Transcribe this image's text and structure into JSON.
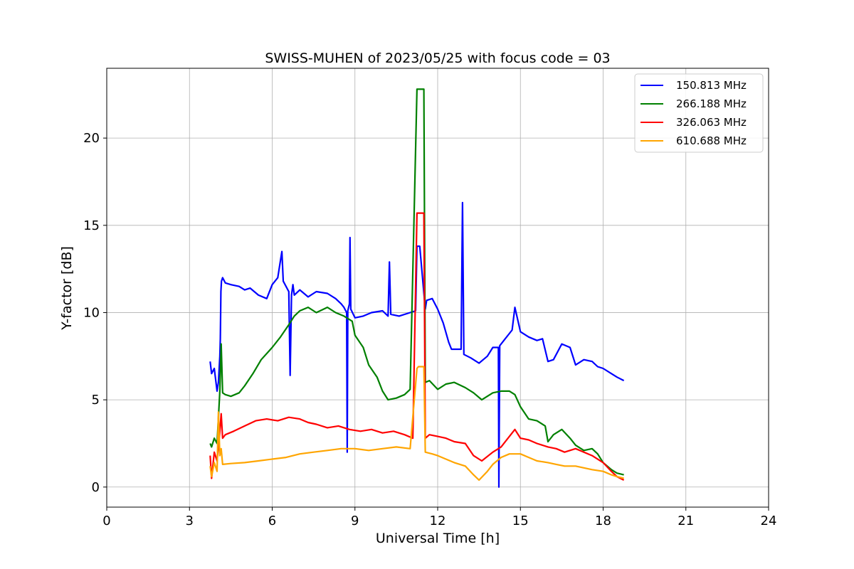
{
  "chart_data": {
    "type": "line",
    "title": "SWISS-MUHEN of 2023/05/25 with focus code = 03",
    "xlabel": "Universal Time [h]",
    "ylabel": "Y-factor [dB]",
    "xlim": [
      0,
      24
    ],
    "ylim": [
      -1.15,
      24.0
    ],
    "xticks": [
      0,
      3,
      6,
      9,
      12,
      15,
      18,
      21,
      24
    ],
    "yticks": [
      0,
      5,
      10,
      15,
      20
    ],
    "grid": true,
    "legend_position": "top-right",
    "series": [
      {
        "name": "150.813 MHz",
        "color": "#0000ff",
        "x": [
          3.75,
          3.8,
          3.9,
          4.0,
          4.05,
          4.1,
          4.12,
          4.14,
          4.16,
          4.2,
          4.3,
          4.5,
          4.8,
          5.0,
          5.2,
          5.5,
          5.8,
          6.0,
          6.2,
          6.35,
          6.4,
          6.6,
          6.65,
          6.7,
          6.75,
          6.8,
          7.0,
          7.3,
          7.6,
          8.0,
          8.3,
          8.5,
          8.6,
          8.7,
          8.72,
          8.74,
          8.8,
          8.82,
          8.85,
          9.0,
          9.3,
          9.6,
          10.0,
          10.2,
          10.25,
          10.3,
          10.6,
          11.0,
          11.2,
          11.25,
          11.3,
          11.35,
          11.55,
          11.6,
          11.8,
          12.0,
          12.2,
          12.4,
          12.5,
          12.7,
          12.85,
          12.9,
          12.95,
          13.2,
          13.5,
          13.8,
          14.0,
          14.2,
          14.22,
          14.25,
          14.4,
          14.7,
          14.8,
          15.0,
          15.3,
          15.6,
          15.8,
          16.0,
          16.2,
          16.5,
          16.8,
          17.0,
          17.3,
          17.6,
          17.8,
          18.0,
          18.3,
          18.5,
          18.75
        ],
        "y": [
          7.2,
          6.5,
          6.8,
          5.5,
          6.0,
          7.5,
          8.5,
          11.2,
          11.8,
          12.0,
          11.7,
          11.6,
          11.5,
          11.3,
          11.4,
          11.0,
          10.8,
          11.6,
          12.0,
          13.5,
          11.8,
          11.2,
          6.4,
          11.0,
          11.6,
          11.0,
          11.3,
          10.9,
          11.2,
          11.1,
          10.8,
          10.5,
          10.3,
          10.0,
          2.0,
          10.1,
          10.5,
          14.3,
          10.2,
          9.7,
          9.8,
          10.0,
          10.1,
          9.8,
          12.9,
          9.9,
          9.8,
          10.0,
          10.1,
          13.8,
          13.8,
          13.8,
          10.2,
          10.7,
          10.8,
          10.2,
          9.4,
          8.3,
          7.9,
          7.9,
          7.9,
          16.3,
          7.6,
          7.4,
          7.1,
          7.5,
          8.0,
          8.0,
          0.0,
          8.1,
          8.4,
          9.0,
          10.3,
          8.9,
          8.6,
          8.4,
          8.5,
          7.2,
          7.3,
          8.2,
          8.0,
          7.0,
          7.3,
          7.2,
          6.9,
          6.8,
          6.5,
          6.3,
          6.1
        ]
      },
      {
        "name": "266.188 MHz",
        "color": "#008000",
        "x": [
          3.75,
          3.8,
          3.9,
          4.0,
          4.1,
          4.15,
          4.2,
          4.3,
          4.5,
          4.8,
          5.0,
          5.3,
          5.6,
          6.0,
          6.3,
          6.6,
          6.8,
          7.0,
          7.3,
          7.6,
          8.0,
          8.3,
          8.6,
          8.9,
          9.0,
          9.3,
          9.5,
          9.8,
          10.0,
          10.2,
          10.5,
          10.8,
          11.0,
          11.25,
          11.3,
          11.5,
          11.55,
          11.7,
          12.0,
          12.3,
          12.6,
          13.0,
          13.3,
          13.6,
          14.0,
          14.3,
          14.6,
          14.8,
          15.0,
          15.3,
          15.6,
          15.9,
          16.0,
          16.2,
          16.5,
          16.8,
          17.0,
          17.3,
          17.6,
          17.8,
          18.0,
          18.3,
          18.5,
          18.75
        ],
        "y": [
          2.5,
          2.3,
          2.8,
          2.5,
          5.5,
          8.2,
          5.4,
          5.3,
          5.2,
          5.4,
          5.8,
          6.5,
          7.3,
          8.0,
          8.6,
          9.3,
          9.8,
          10.1,
          10.3,
          10.0,
          10.3,
          10.0,
          9.8,
          9.5,
          8.7,
          8.0,
          7.0,
          6.3,
          5.5,
          5.0,
          5.1,
          5.3,
          5.6,
          22.8,
          22.8,
          22.8,
          6.0,
          6.1,
          5.6,
          5.9,
          6.0,
          5.7,
          5.4,
          5.0,
          5.4,
          5.5,
          5.5,
          5.3,
          4.6,
          3.9,
          3.8,
          3.5,
          2.6,
          3.0,
          3.3,
          2.8,
          2.4,
          2.1,
          2.2,
          1.9,
          1.4,
          1.0,
          0.8,
          0.7
        ]
      },
      {
        "name": "326.063 MHz",
        "color": "#ff0000",
        "x": [
          3.75,
          3.8,
          3.9,
          4.0,
          4.1,
          4.15,
          4.2,
          4.3,
          4.6,
          5.0,
          5.4,
          5.8,
          6.2,
          6.6,
          7.0,
          7.3,
          7.6,
          8.0,
          8.4,
          8.8,
          9.2,
          9.6,
          10.0,
          10.4,
          10.8,
          11.1,
          11.25,
          11.3,
          11.5,
          11.55,
          11.7,
          12.0,
          12.3,
          12.6,
          13.0,
          13.3,
          13.6,
          14.0,
          14.3,
          14.6,
          14.8,
          15.0,
          15.3,
          15.6,
          16.0,
          16.3,
          16.6,
          17.0,
          17.3,
          17.6,
          18.0,
          18.3,
          18.5,
          18.75
        ],
        "y": [
          1.8,
          0.5,
          2.0,
          1.5,
          3.2,
          4.2,
          2.8,
          3.0,
          3.2,
          3.5,
          3.8,
          3.9,
          3.8,
          4.0,
          3.9,
          3.7,
          3.6,
          3.4,
          3.5,
          3.3,
          3.2,
          3.3,
          3.1,
          3.2,
          3.0,
          2.8,
          15.7,
          15.7,
          15.7,
          2.8,
          3.0,
          2.9,
          2.8,
          2.6,
          2.5,
          1.8,
          1.5,
          2.0,
          2.3,
          2.9,
          3.3,
          2.8,
          2.7,
          2.5,
          2.3,
          2.2,
          2.0,
          2.2,
          2.0,
          1.8,
          1.4,
          0.9,
          0.6,
          0.4
        ]
      },
      {
        "name": "610.688 MHz",
        "color": "#ffa500",
        "x": [
          3.75,
          3.8,
          3.9,
          4.0,
          4.05,
          4.1,
          4.15,
          4.2,
          4.5,
          5.0,
          5.5,
          6.0,
          6.5,
          7.0,
          7.5,
          8.0,
          8.5,
          9.0,
          9.5,
          10.0,
          10.5,
          11.0,
          11.25,
          11.3,
          11.5,
          11.55,
          11.8,
          12.0,
          12.3,
          12.6,
          13.0,
          13.3,
          13.5,
          13.8,
          14.0,
          14.3,
          14.6,
          15.0,
          15.3,
          15.6,
          16.0,
          16.3,
          16.6,
          17.0,
          17.3,
          17.6,
          18.0,
          18.3,
          18.5,
          18.75
        ],
        "y": [
          1.2,
          0.6,
          1.4,
          0.9,
          4.3,
          1.8,
          2.2,
          1.3,
          1.35,
          1.4,
          1.5,
          1.6,
          1.7,
          1.9,
          2.0,
          2.1,
          2.2,
          2.2,
          2.1,
          2.2,
          2.3,
          2.2,
          6.8,
          6.9,
          6.9,
          2.0,
          1.9,
          1.8,
          1.6,
          1.4,
          1.2,
          0.7,
          0.4,
          0.9,
          1.3,
          1.7,
          1.9,
          1.9,
          1.7,
          1.5,
          1.4,
          1.3,
          1.2,
          1.2,
          1.1,
          1.0,
          0.9,
          0.7,
          0.6,
          0.5
        ]
      }
    ]
  }
}
